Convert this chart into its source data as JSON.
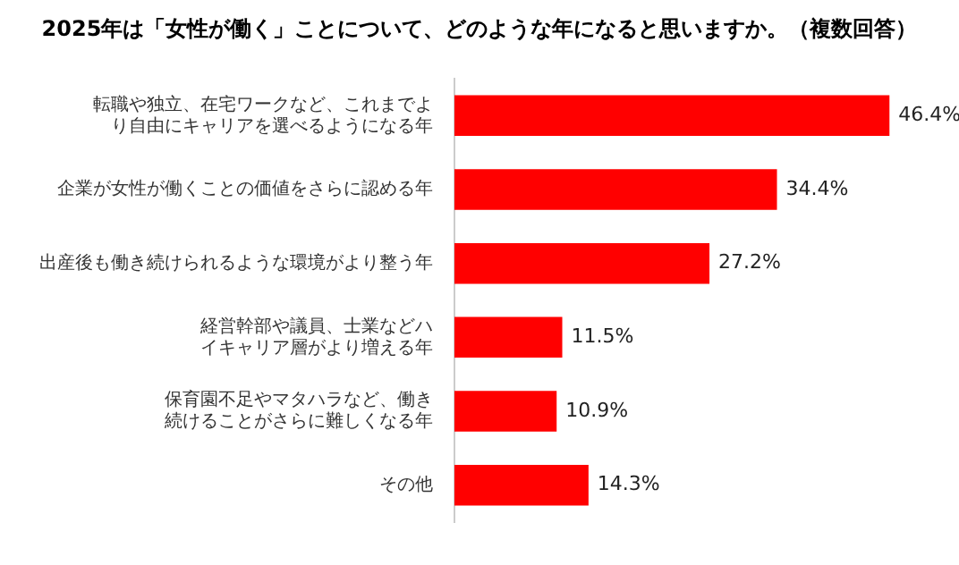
{
  "chart_data": {
    "type": "bar",
    "orientation": "horizontal",
    "title": "2025年は「女性が働く」ことについて、どのような年になると思いますか。（複数回答）",
    "categories": [
      "転職や独立、在宅ワークなど、これまでより自由にキャリアを選べるようになる年",
      "企業が女性が働くことの価値をさらに認める年",
      "出産後も働き続けられるような環境がより整う年",
      "経営幹部や議員、士業などハイキャリア層がより増える年",
      "保育園不足やマタハラなど、働き続けることがさらに難しくなる年",
      "その他"
    ],
    "values": [
      46.4,
      34.4,
      27.2,
      11.5,
      10.9,
      14.3
    ],
    "value_labels": [
      "46.4%",
      "34.4%",
      "27.2%",
      "11.5%",
      "10.9%",
      "14.3%"
    ],
    "color": "#ff0000",
    "tick_labels": "y",
    "grid": false,
    "legend": false
  }
}
